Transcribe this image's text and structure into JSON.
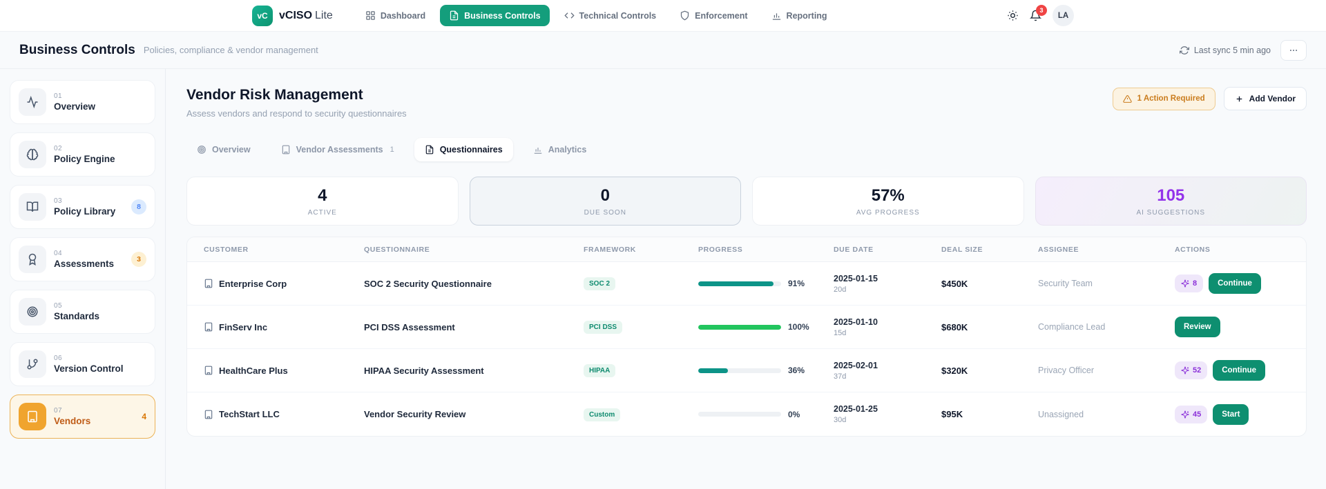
{
  "nav": {
    "logo_text": "vC",
    "brand_bold": "vCISO",
    "brand_light": "Lite",
    "items": [
      {
        "label": "Dashboard"
      },
      {
        "label": "Business Controls"
      },
      {
        "label": "Technical Controls"
      },
      {
        "label": "Enforcement"
      },
      {
        "label": "Reporting"
      }
    ],
    "notification_count": "3",
    "avatar_initials": "LA"
  },
  "page_header": {
    "title": "Business Controls",
    "subtitle": "Policies, compliance & vendor management",
    "last_sync": "Last sync 5 min ago"
  },
  "sidebar": {
    "items": [
      {
        "index": "01",
        "label": "Overview"
      },
      {
        "index": "02",
        "label": "Policy Engine"
      },
      {
        "index": "03",
        "label": "Policy Library",
        "badge": "8"
      },
      {
        "index": "04",
        "label": "Assessments",
        "badge": "3"
      },
      {
        "index": "05",
        "label": "Standards"
      },
      {
        "index": "06",
        "label": "Version Control"
      },
      {
        "index": "07",
        "label": "Vendors",
        "badge": "4"
      }
    ]
  },
  "main": {
    "title": "Vendor Risk Management",
    "subtitle": "Assess vendors and respond to security questionnaires",
    "action_required_label": "1 Action Required",
    "add_vendor_label": "Add Vendor",
    "tabs": [
      {
        "label": "Overview"
      },
      {
        "label": "Vendor Assessments",
        "count": "1"
      },
      {
        "label": "Questionnaires"
      },
      {
        "label": "Analytics"
      }
    ],
    "stats": [
      {
        "value": "4",
        "label": "ACTIVE"
      },
      {
        "value": "0",
        "label": "DUE SOON"
      },
      {
        "value": "57%",
        "label": "AVG PROGRESS"
      },
      {
        "value": "105",
        "label": "AI SUGGESTIONS"
      }
    ],
    "table": {
      "columns": [
        "CUSTOMER",
        "QUESTIONNAIRE",
        "FRAMEWORK",
        "PROGRESS",
        "DUE DATE",
        "DEAL SIZE",
        "ASSIGNEE",
        "ACTIONS"
      ],
      "rows": [
        {
          "customer": "Enterprise Corp",
          "questionnaire": "SOC 2 Security Questionnaire",
          "framework": "SOC 2",
          "progress": 91,
          "progress_label": "91%",
          "bar_color": "#0d9488",
          "due_date": "2025-01-15",
          "days": "20d",
          "deal_size": "$450K",
          "assignee": "Security Team",
          "ai_count": "8",
          "action": "Continue"
        },
        {
          "customer": "FinServ Inc",
          "questionnaire": "PCI DSS Assessment",
          "framework": "PCI DSS",
          "progress": 100,
          "progress_label": "100%",
          "bar_color": "#22c55e",
          "due_date": "2025-01-10",
          "days": "15d",
          "deal_size": "$680K",
          "assignee": "Compliance Lead",
          "ai_count": null,
          "action": "Review"
        },
        {
          "customer": "HealthCare Plus",
          "questionnaire": "HIPAA Security Assessment",
          "framework": "HIPAA",
          "progress": 36,
          "progress_label": "36%",
          "bar_color": "#0d9488",
          "due_date": "2025-02-01",
          "days": "37d",
          "deal_size": "$320K",
          "assignee": "Privacy Officer",
          "ai_count": "52",
          "action": "Continue"
        },
        {
          "customer": "TechStart LLC",
          "questionnaire": "Vendor Security Review",
          "framework": "Custom",
          "progress": 0,
          "progress_label": "0%",
          "bar_color": "#0d9488",
          "due_date": "2025-01-25",
          "days": "30d",
          "deal_size": "$95K",
          "assignee": "Unassigned",
          "ai_count": "45",
          "action": "Start"
        }
      ]
    }
  },
  "colors": {
    "brand_green": "#149e7c",
    "button_green": "#0e8f70",
    "accent_amber": "#f0a42e",
    "accent_purple": "#9333ea",
    "notification_red": "#ef4444"
  }
}
